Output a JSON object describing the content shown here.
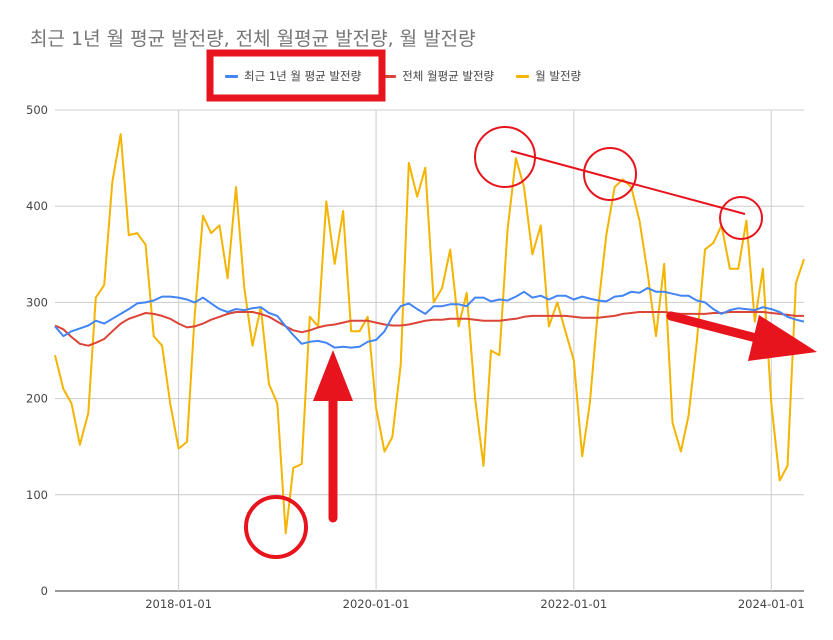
{
  "chart_data": {
    "type": "line",
    "title": "최근 1년 월 평균 발전량, 전체 월평균 발전량, 월 발전량",
    "xlabel": "",
    "ylabel": "",
    "ylim": [
      0,
      500
    ],
    "xlim": [
      "2016-10-01",
      "2024-05-01"
    ],
    "y_ticks": [
      0,
      100,
      200,
      300,
      400,
      500
    ],
    "x_ticks": [
      "2018-01-01",
      "2020-01-01",
      "2022-01-01",
      "2024-01-01"
    ],
    "grid": true,
    "legend_position": "top",
    "x": [
      "2016-10-01",
      "2016-11-01",
      "2016-12-01",
      "2017-01-01",
      "2017-02-01",
      "2017-03-01",
      "2017-04-01",
      "2017-05-01",
      "2017-06-01",
      "2017-07-01",
      "2017-08-01",
      "2017-09-01",
      "2017-10-01",
      "2017-11-01",
      "2017-12-01",
      "2018-01-01",
      "2018-02-01",
      "2018-03-01",
      "2018-04-01",
      "2018-05-01",
      "2018-06-01",
      "2018-07-01",
      "2018-08-01",
      "2018-09-01",
      "2018-10-01",
      "2018-11-01",
      "2018-12-01",
      "2019-01-01",
      "2019-02-01",
      "2019-03-01",
      "2019-04-01",
      "2019-05-01",
      "2019-06-01",
      "2019-07-01",
      "2019-08-01",
      "2019-09-01",
      "2019-10-01",
      "2019-11-01",
      "2019-12-01",
      "2020-01-01",
      "2020-02-01",
      "2020-03-01",
      "2020-04-01",
      "2020-05-01",
      "2020-06-01",
      "2020-07-01",
      "2020-08-01",
      "2020-09-01",
      "2020-10-01",
      "2020-11-01",
      "2020-12-01",
      "2021-01-01",
      "2021-02-01",
      "2021-03-01",
      "2021-04-01",
      "2021-05-01",
      "2021-06-01",
      "2021-07-01",
      "2021-08-01",
      "2021-09-01",
      "2021-10-01",
      "2021-11-01",
      "2021-12-01",
      "2022-01-01",
      "2022-02-01",
      "2022-03-01",
      "2022-04-01",
      "2022-05-01",
      "2022-06-01",
      "2022-07-01",
      "2022-08-01",
      "2022-09-01",
      "2022-10-01",
      "2022-11-01",
      "2022-12-01",
      "2023-01-01",
      "2023-02-01",
      "2023-03-01",
      "2023-04-01",
      "2023-05-01",
      "2023-06-01",
      "2023-07-01",
      "2023-08-01",
      "2023-09-01",
      "2023-10-01",
      "2023-11-01",
      "2023-12-01",
      "2024-01-01",
      "2024-02-01",
      "2024-03-01",
      "2024-04-01",
      "2024-05-01"
    ],
    "series": [
      {
        "name": "최근 1년 월 평균 발전량",
        "color": "#4285f4",
        "values": [
          275,
          265,
          270,
          273,
          276,
          281,
          278,
          283,
          288,
          293,
          299,
          300,
          302,
          306,
          306,
          305,
          303,
          300,
          305,
          299,
          293,
          290,
          293,
          292,
          294,
          295,
          289,
          286,
          275,
          266,
          257,
          259,
          260,
          258,
          253,
          254,
          253,
          254,
          259,
          261,
          270,
          285,
          296,
          299,
          293,
          288,
          296,
          296,
          298,
          298,
          296,
          305,
          305,
          301,
          303,
          302,
          306,
          311,
          305,
          307,
          303,
          307,
          307,
          303,
          306,
          304,
          302,
          301,
          306,
          307,
          311,
          310,
          315,
          311,
          311,
          309,
          307,
          307,
          302,
          300,
          293,
          288,
          292,
          294,
          293,
          292,
          295,
          293,
          290,
          285,
          282,
          280
        ]
      },
      {
        "name": "전체 월평균 발전량",
        "color": "#db4437",
        "values": [
          276,
          272,
          264,
          257,
          255,
          258,
          262,
          270,
          278,
          283,
          286,
          289,
          288,
          286,
          283,
          278,
          274,
          275,
          278,
          282,
          285,
          288,
          290,
          290,
          290,
          288,
          285,
          280,
          275,
          271,
          269,
          271,
          274,
          276,
          277,
          279,
          281,
          281,
          281,
          279,
          277,
          276,
          276,
          277,
          279,
          281,
          282,
          282,
          283,
          283,
          283,
          282,
          281,
          281,
          281,
          282,
          283,
          285,
          286,
          286,
          286,
          286,
          286,
          285,
          284,
          284,
          284,
          285,
          286,
          288,
          289,
          290,
          290,
          290,
          290,
          289,
          288,
          288,
          288,
          288,
          289,
          289,
          290,
          290,
          290,
          290,
          290,
          289,
          288,
          287,
          286,
          286
        ]
      },
      {
        "name": "월 발전량",
        "color": "#f4b400",
        "values": [
          245,
          210,
          195,
          152,
          185,
          305,
          318,
          425,
          475,
          370,
          372,
          360,
          265,
          255,
          195,
          148,
          155,
          285,
          390,
          372,
          380,
          325,
          420,
          315,
          255,
          295,
          215,
          195,
          60,
          128,
          132,
          285,
          275,
          405,
          340,
          395,
          270,
          270,
          285,
          190,
          145,
          160,
          235,
          445,
          410,
          440,
          300,
          315,
          355,
          275,
          310,
          200,
          130,
          250,
          245,
          375,
          450,
          420,
          350,
          380,
          275,
          300,
          270,
          240,
          140,
          195,
          295,
          370,
          420,
          428,
          420,
          385,
          330,
          265,
          340,
          175,
          145,
          182,
          260,
          355,
          362,
          380,
          335,
          335,
          385,
          280,
          335,
          195,
          115,
          130,
          320,
          345
        ]
      }
    ]
  }
}
